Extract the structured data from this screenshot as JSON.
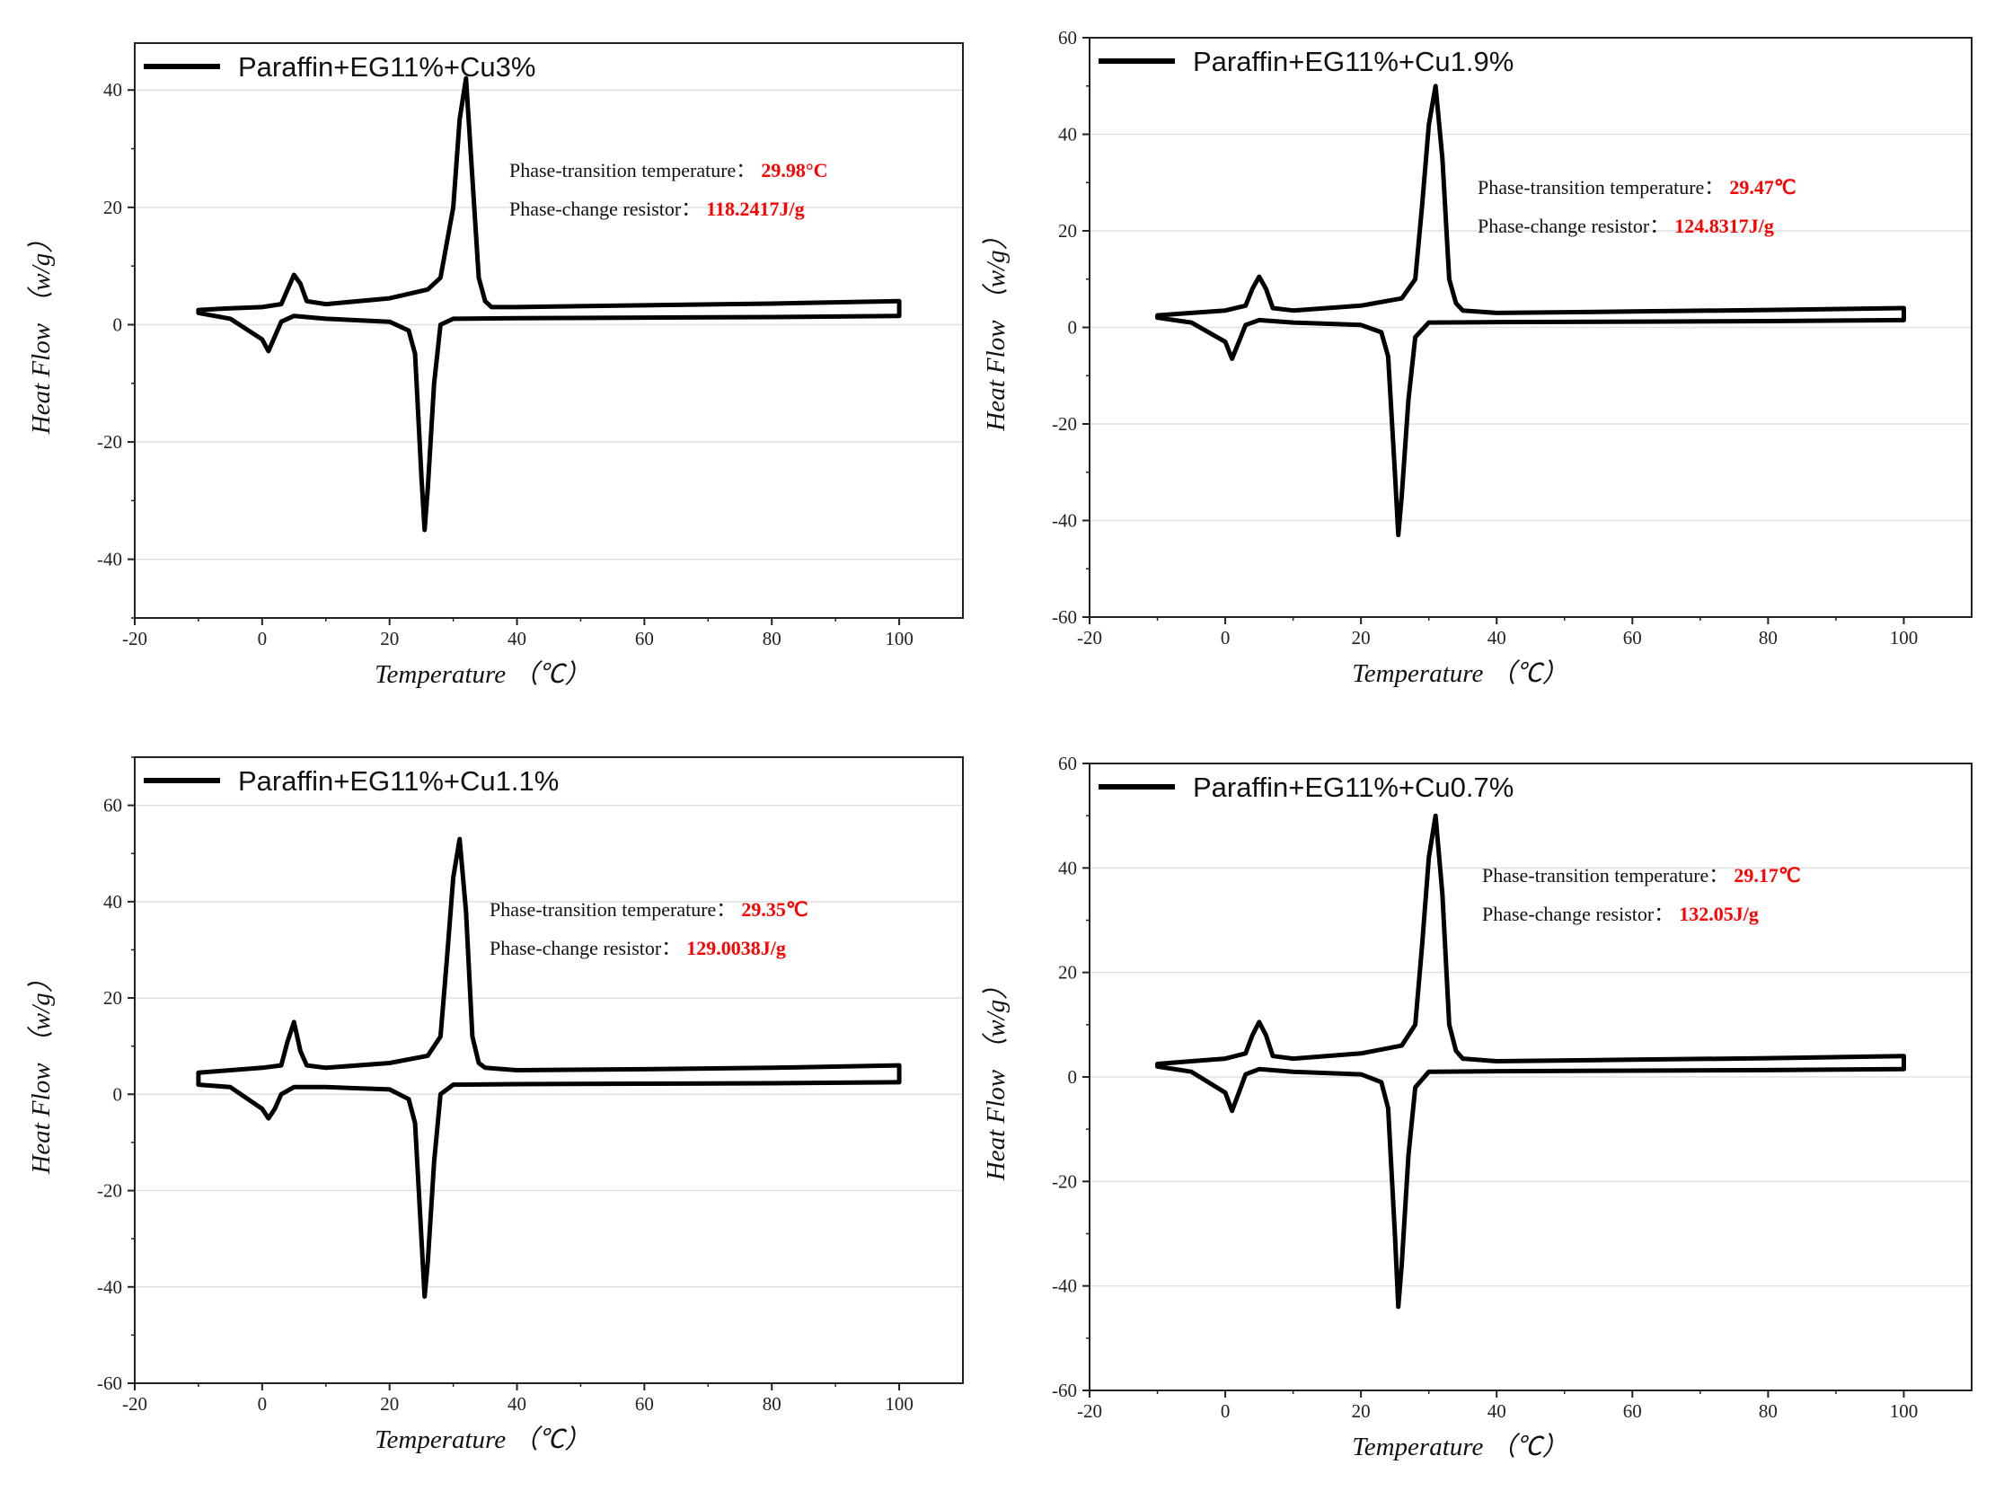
{
  "colors": {
    "curve": "#000000",
    "annotation_value": "#ff0000",
    "grid": "#e0e0e0",
    "frame": "#222222"
  },
  "chart_data": [
    {
      "type": "line",
      "title": "",
      "legend": "Paraffin+EG11%+Cu3%",
      "legend_position": "top-left",
      "xlabel": "Temperature （℃）",
      "ylabel": "Heat Flow （w/g）",
      "xlim": [
        -20,
        110
      ],
      "ylim": [
        -50,
        48
      ],
      "xticks": [
        -20,
        0,
        20,
        40,
        60,
        80,
        100
      ],
      "yticks": [
        -40,
        -20,
        0,
        20,
        40
      ],
      "grid": true,
      "annotation": {
        "temp_label": "Phase-transition temperature：",
        "temp_value": "29.98°C",
        "res_label": "Phase-change resistor：",
        "res_value": "118.2417J/g"
      },
      "heating_curve": {
        "x": [
          -10,
          -5,
          0,
          3,
          4,
          5,
          6,
          7,
          10,
          20,
          26,
          28,
          30,
          31,
          32,
          33,
          34,
          35,
          36,
          40,
          60,
          80,
          100
        ],
        "y": [
          2.5,
          2.8,
          3,
          3.5,
          6,
          8.5,
          7,
          4,
          3.5,
          4.5,
          6,
          8,
          20,
          35,
          42,
          25,
          8,
          4,
          3,
          3,
          3.3,
          3.6,
          4
        ]
      },
      "cooling_curve": {
        "x": [
          100,
          80,
          60,
          40,
          30,
          28,
          27,
          26,
          25.5,
          25,
          24,
          23,
          20,
          10,
          5,
          3,
          2,
          1,
          0,
          -5,
          -10
        ],
        "y": [
          1.5,
          1.3,
          1.2,
          1.1,
          1,
          0,
          -10,
          -28,
          -35,
          -26,
          -5,
          -1,
          0.5,
          1,
          1.5,
          0.5,
          -2,
          -4.5,
          -2.5,
          1,
          2
        ]
      }
    },
    {
      "type": "line",
      "title": "",
      "legend": "Paraffin+EG11%+Cu1.9%",
      "legend_position": "top-left",
      "xlabel": "Temperature （℃）",
      "ylabel": "Heat Flow （w/g）",
      "xlim": [
        -20,
        110
      ],
      "ylim": [
        -60,
        60
      ],
      "xticks": [
        -20,
        0,
        20,
        40,
        60,
        80,
        100
      ],
      "yticks": [
        -60,
        -40,
        -20,
        0,
        20,
        40,
        60
      ],
      "grid": true,
      "annotation": {
        "temp_label": "Phase-transition temperature：",
        "temp_value": "29.47℃",
        "res_label": "Phase-change resistor：",
        "res_value": "124.8317J/g"
      },
      "heating_curve": {
        "x": [
          -10,
          -5,
          0,
          3,
          4,
          5,
          6,
          7,
          10,
          20,
          26,
          28,
          29,
          30,
          31,
          32,
          33,
          34,
          35,
          40,
          60,
          80,
          100
        ],
        "y": [
          2.5,
          3,
          3.5,
          4.5,
          8,
          10.5,
          8,
          4,
          3.5,
          4.5,
          6,
          10,
          25,
          42,
          50,
          35,
          10,
          5,
          3.5,
          3,
          3.3,
          3.6,
          4
        ]
      },
      "cooling_curve": {
        "x": [
          100,
          80,
          60,
          40,
          30,
          28,
          27,
          26,
          25.5,
          25,
          24,
          23,
          20,
          10,
          5,
          3,
          2,
          1,
          0,
          -5,
          -10
        ],
        "y": [
          1.5,
          1.3,
          1.2,
          1.1,
          1,
          -2,
          -15,
          -35,
          -43,
          -30,
          -6,
          -1,
          0.5,
          1,
          1.5,
          0.5,
          -3,
          -6.5,
          -3,
          1,
          2
        ]
      }
    },
    {
      "type": "line",
      "title": "",
      "legend": "Paraffin+EG11%+Cu1.1%",
      "legend_position": "top-left",
      "xlabel": "Temperature （℃）",
      "ylabel": "Heat Flow （w/g）",
      "xlim": [
        -20,
        110
      ],
      "ylim": [
        -60,
        70
      ],
      "xticks": [
        -20,
        0,
        20,
        40,
        60,
        80,
        100
      ],
      "yticks": [
        -60,
        -40,
        -20,
        0,
        20,
        40,
        60
      ],
      "grid": true,
      "annotation": {
        "temp_label": "Phase-transition temperature：",
        "temp_value": "29.35℃",
        "res_label": "Phase-change resistor：",
        "res_value": "129.0038J/g"
      },
      "heating_curve": {
        "x": [
          -10,
          -5,
          0,
          3,
          4,
          5,
          6,
          7,
          10,
          20,
          26,
          28,
          29,
          30,
          31,
          32,
          33,
          34,
          35,
          40,
          60,
          80,
          100
        ],
        "y": [
          4.5,
          5,
          5.5,
          6,
          11,
          15,
          9,
          6,
          5.5,
          6.5,
          8,
          12,
          28,
          45,
          53,
          38,
          12,
          6.5,
          5.5,
          5,
          5.2,
          5.5,
          6
        ]
      },
      "cooling_curve": {
        "x": [
          100,
          80,
          60,
          40,
          30,
          28,
          27,
          26,
          25.5,
          25,
          24,
          23,
          20,
          10,
          5,
          3,
          2,
          1,
          0,
          -5,
          -10
        ],
        "y": [
          2.5,
          2.3,
          2.2,
          2.1,
          2,
          0,
          -14,
          -35,
          -42,
          -30,
          -6,
          -1,
          1,
          1.5,
          1.5,
          0,
          -3,
          -5,
          -3,
          1.5,
          2
        ]
      }
    },
    {
      "type": "line",
      "title": "",
      "legend": "Paraffin+EG11%+Cu0.7%",
      "legend_position": "top-left",
      "xlabel": "Temperature （℃）",
      "ylabel": "Heat Flow （w/g）",
      "xlim": [
        -20,
        110
      ],
      "ylim": [
        -60,
        60
      ],
      "xticks": [
        -20,
        0,
        20,
        40,
        60,
        80,
        100
      ],
      "yticks": [
        -60,
        -40,
        -20,
        0,
        20,
        40,
        60
      ],
      "grid": true,
      "annotation": {
        "temp_label": "Phase-transition temperature：",
        "temp_value": "29.17℃",
        "res_label": "Phase-change resistor：",
        "res_value": "132.05J/g"
      },
      "heating_curve": {
        "x": [
          -10,
          -5,
          0,
          3,
          4,
          5,
          6,
          7,
          10,
          20,
          26,
          28,
          29,
          30,
          31,
          32,
          33,
          34,
          35,
          40,
          60,
          80,
          100
        ],
        "y": [
          2.5,
          3,
          3.5,
          4.5,
          8,
          10.5,
          8,
          4,
          3.5,
          4.5,
          6,
          10,
          25,
          42,
          50,
          35,
          10,
          5,
          3.5,
          3,
          3.3,
          3.6,
          4
        ]
      },
      "cooling_curve": {
        "x": [
          100,
          80,
          60,
          40,
          30,
          28,
          27,
          26,
          25.5,
          25,
          24,
          23,
          20,
          10,
          5,
          3,
          2,
          1,
          0,
          -5,
          -10
        ],
        "y": [
          1.5,
          1.3,
          1.2,
          1.1,
          1,
          -2,
          -15,
          -36,
          -44,
          -30,
          -6,
          -1,
          0.5,
          1,
          1.5,
          0.5,
          -3,
          -6.5,
          -3,
          1,
          2
        ]
      }
    }
  ]
}
